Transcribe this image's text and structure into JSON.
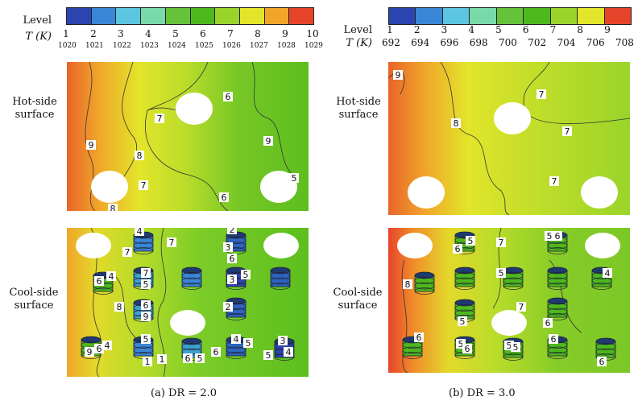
{
  "left": {
    "legend": {
      "level_title": "Level",
      "t_title": "T (K)",
      "levels": [
        "1",
        "2",
        "3",
        "4",
        "5",
        "6",
        "7",
        "8",
        "9",
        "10"
      ],
      "temps": [
        "1020",
        "1021",
        "1022",
        "1023",
        "1024",
        "1025",
        "1026",
        "1027",
        "1028",
        "1029"
      ],
      "colors": [
        "#2c44b0",
        "#3a86d6",
        "#5cc6e2",
        "#79d9a8",
        "#66c23a",
        "#4db81c",
        "#9ad42b",
        "#e3e52a",
        "#f0a52a",
        "#e6442a"
      ]
    },
    "caption": "(a) DR = 2.0",
    "hot_labels": [
      "6",
      "7",
      "9",
      "8",
      "7",
      "9",
      "5",
      "6",
      "8"
    ],
    "cool_labels": [
      "4",
      "7",
      "2",
      "3",
      "6",
      "7",
      "5",
      "7",
      "6",
      "4",
      "3",
      "8",
      "6",
      "9",
      "5",
      "2",
      "1",
      "4",
      "5",
      "9",
      "6",
      "4",
      "5",
      "6",
      "5",
      "6",
      "1",
      "3",
      "5",
      "4"
    ]
  },
  "right": {
    "legend": {
      "level_title": "Level",
      "t_title": "T (K)",
      "levels": [
        "1",
        "2",
        "3",
        "4",
        "5",
        "6",
        "7",
        "8",
        "9"
      ],
      "temps": [
        "692",
        "694",
        "696",
        "698",
        "700",
        "702",
        "704",
        "706",
        "708"
      ],
      "colors": [
        "#2c44b0",
        "#3a86d6",
        "#5cc6e2",
        "#79d9a8",
        "#66c23a",
        "#4db81c",
        "#9ad42b",
        "#e3e52a",
        "#e6442a"
      ]
    },
    "caption": "(b) DR = 3.0",
    "hot_labels": [
      "9",
      "7",
      "8",
      "7",
      "7"
    ],
    "cool_labels": [
      "5",
      "6",
      "7",
      "5",
      "6",
      "8",
      "5",
      "4",
      "7",
      "5",
      "6",
      "6",
      "5",
      "6",
      "5",
      "5",
      "6",
      "6"
    ]
  },
  "row_labels": {
    "hot": "Hot-side surface",
    "cool": "Cool-side surface"
  }
}
